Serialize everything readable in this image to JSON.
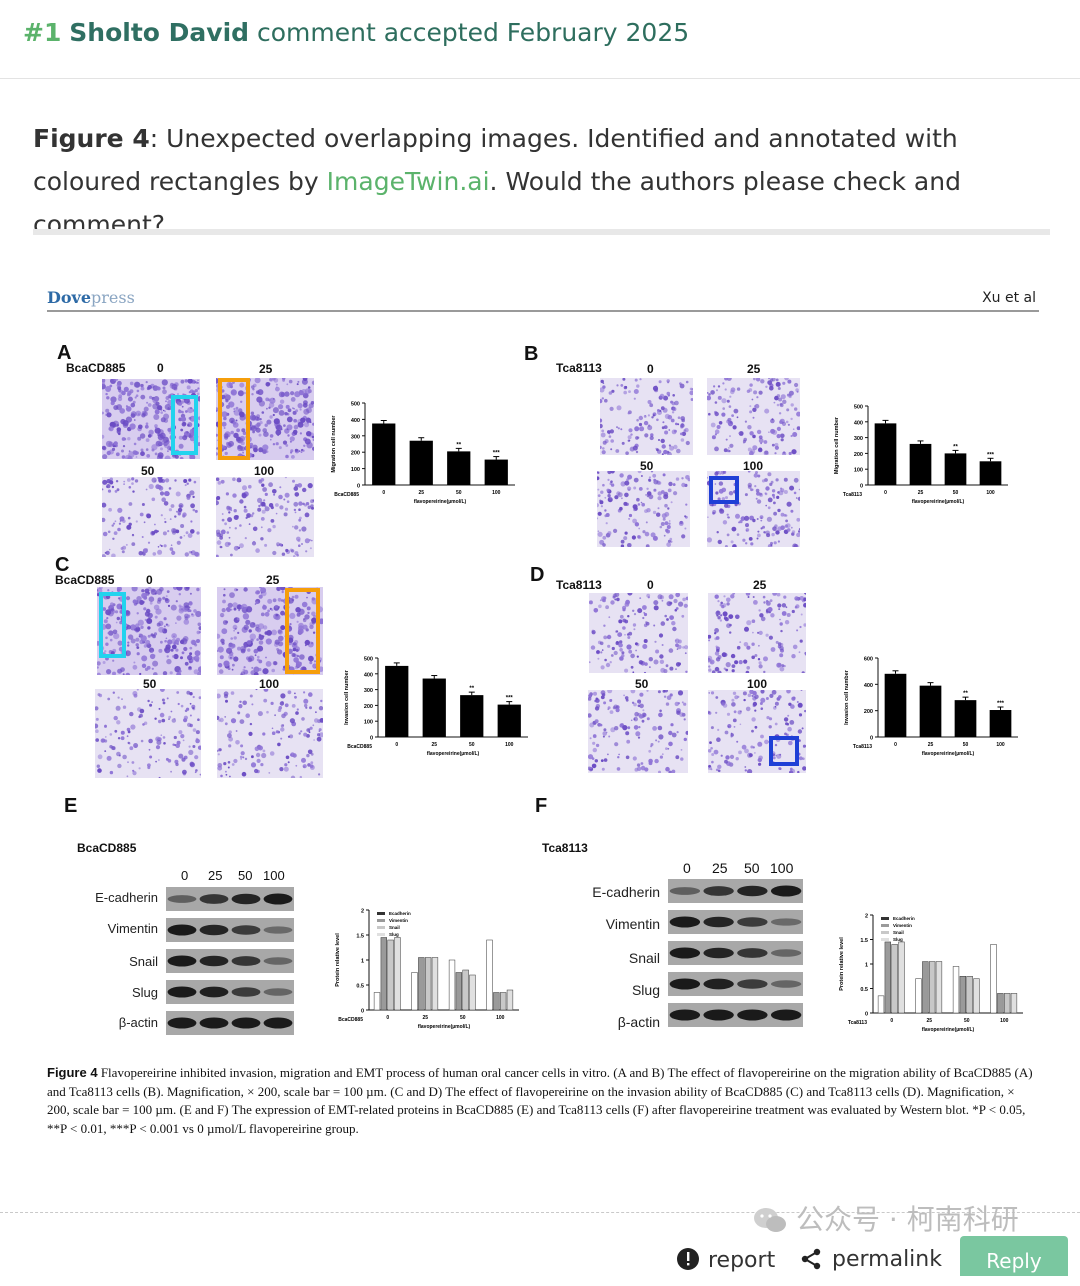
{
  "comment": {
    "number": "#1",
    "author": "Sholto David",
    "status": "comment accepted February 2025"
  },
  "body": {
    "figure_ref": "Figure 4",
    "text_1": ": Unexpected overlapping images. Identified and annotated with coloured rectangles by ",
    "link": "ImageTwin.ai",
    "text_2": ". Would the authors please check and comment?"
  },
  "figure": {
    "journal_brand": "Dove",
    "journal_brand_suffix": "press",
    "running_head": "Xu et al",
    "panels": {
      "A": {
        "label": "A",
        "cell_line": "BcaCD885",
        "concentrations": [
          "0",
          "25",
          "50",
          "100"
        ]
      },
      "B": {
        "label": "B",
        "cell_line": "Tca8113",
        "concentrations": [
          "0",
          "25",
          "50",
          "100"
        ]
      },
      "C": {
        "label": "C",
        "cell_line": "BcaCD885",
        "concentrations": [
          "0",
          "25",
          "50",
          "100"
        ]
      },
      "D": {
        "label": "D",
        "cell_line": "Tca8113",
        "concentrations": [
          "0",
          "25",
          "50",
          "100"
        ]
      },
      "E": {
        "label": "E",
        "cell_line": "BcaCD885",
        "concentrations": [
          "0",
          "25",
          "50",
          "100"
        ]
      },
      "F": {
        "label": "F",
        "cell_line": "Tca8113",
        "concentrations": [
          "0",
          "25",
          "50",
          "100"
        ]
      }
    },
    "proteins": [
      "E-cadherin",
      "Vimentin",
      "Snail",
      "Slug",
      "β-actin"
    ],
    "caption_title": "Figure 4",
    "caption_text": " Flavopereirine inhibited invasion, migration and EMT process of human oral cancer cells in vitro. (A and B) The effect of flavopereirine on the migration ability of BcaCD885 (A) and Tca8113 cells (B). Magnification, × 200, scale bar = 100 µm. (C and D) The effect of flavopereirine on the invasion ability of BcaCD885 (C) and Tca8113 cells (D). Magnification, × 200, scale bar = 100 µm. (E and F) The expression of EMT-related proteins in BcaCD885 (E) and Tca8113 cells (F) after flavopereirine treatment was evaluated by Western blot. *P < 0.05, **P < 0.01, ***P < 0.001 vs 0 µmol/L flavopereirine group."
  },
  "chart_data": [
    {
      "type": "bar",
      "panel": "A",
      "categories": [
        "0",
        "25",
        "50",
        "100"
      ],
      "values": [
        375,
        270,
        205,
        155
      ],
      "significance": [
        "",
        "",
        "**",
        "***"
      ],
      "ylabel": "Migration cell number",
      "xlabel": "flavopereirine(µmol/L)",
      "group_label": "BcaCD885",
      "ylim": [
        0,
        500
      ],
      "yticks": [
        0,
        100,
        200,
        300,
        400,
        500
      ]
    },
    {
      "type": "bar",
      "panel": "B",
      "categories": [
        "0",
        "25",
        "50",
        "100"
      ],
      "values": [
        390,
        260,
        200,
        150
      ],
      "significance": [
        "",
        "",
        "**",
        "***"
      ],
      "ylabel": "Migration cell number",
      "xlabel": "flavopereirine(µmol/L)",
      "group_label": "Tca8113",
      "ylim": [
        0,
        500
      ],
      "yticks": [
        0,
        100,
        200,
        300,
        400,
        500
      ]
    },
    {
      "type": "bar",
      "panel": "C",
      "categories": [
        "0",
        "25",
        "50",
        "100"
      ],
      "values": [
        450,
        370,
        265,
        205
      ],
      "significance": [
        "",
        "",
        "**",
        "***"
      ],
      "ylabel": "Invasion cell number",
      "xlabel": "flavopereirine(µmol/L)",
      "group_label": "BcaCD885",
      "ylim": [
        0,
        500
      ],
      "yticks": [
        0,
        100,
        200,
        300,
        400,
        500
      ]
    },
    {
      "type": "bar",
      "panel": "D",
      "categories": [
        "0",
        "25",
        "50",
        "100"
      ],
      "values": [
        480,
        390,
        280,
        205
      ],
      "significance": [
        "",
        "",
        "**",
        "***"
      ],
      "ylabel": "Invasion cell number",
      "xlabel": "flavopereirine(µmol/L)",
      "group_label": "Tca8113",
      "ylim": [
        0,
        600
      ],
      "yticks": [
        0,
        200,
        400,
        600
      ]
    },
    {
      "type": "bar",
      "panel": "E",
      "categories": [
        "0",
        "25",
        "50",
        "100"
      ],
      "ylabel": "Protein relative level",
      "xlabel": "flavopereirine(µmol/L)",
      "group_label": "BcaCD885",
      "ylim": [
        0,
        2.0
      ],
      "yticks": [
        0,
        0.5,
        1.0,
        1.5,
        2.0
      ],
      "series": [
        {
          "name": "Ecadherin",
          "values": [
            0.35,
            0.75,
            1.0,
            1.4
          ]
        },
        {
          "name": "Vimentin",
          "values": [
            1.45,
            1.05,
            0.75,
            0.35
          ]
        },
        {
          "name": "Snail",
          "values": [
            1.4,
            1.05,
            0.8,
            0.35
          ]
        },
        {
          "name": "Slug",
          "values": [
            1.45,
            1.05,
            0.7,
            0.4
          ]
        }
      ]
    },
    {
      "type": "bar",
      "panel": "F",
      "categories": [
        "0",
        "25",
        "50",
        "100"
      ],
      "ylabel": "Protein relative level",
      "xlabel": "flavopereirine(µmol/L)",
      "group_label": "Tca8113",
      "ylim": [
        0,
        2.0
      ],
      "yticks": [
        0,
        0.5,
        1.0,
        1.5,
        2.0
      ],
      "series": [
        {
          "name": "Ecadherin",
          "values": [
            0.35,
            0.7,
            0.95,
            1.4
          ]
        },
        {
          "name": "Vimentin",
          "values": [
            1.45,
            1.05,
            0.75,
            0.4
          ]
        },
        {
          "name": "Snail",
          "values": [
            1.4,
            1.05,
            0.75,
            0.4
          ]
        },
        {
          "name": "Slug",
          "values": [
            1.45,
            1.05,
            0.7,
            0.4
          ]
        }
      ]
    }
  ],
  "footer": {
    "watermark": "公众号 · 柯南科研",
    "report": "report",
    "permalink": "permalink",
    "reply": "Reply"
  },
  "colors": {
    "accent": "#5bb36b",
    "author": "#2f6f62",
    "highlight_cyan": "#22d3ee",
    "highlight_orange": "#f59e0b",
    "highlight_blue": "#1f3fd6",
    "stain": "#7b5bd1"
  }
}
